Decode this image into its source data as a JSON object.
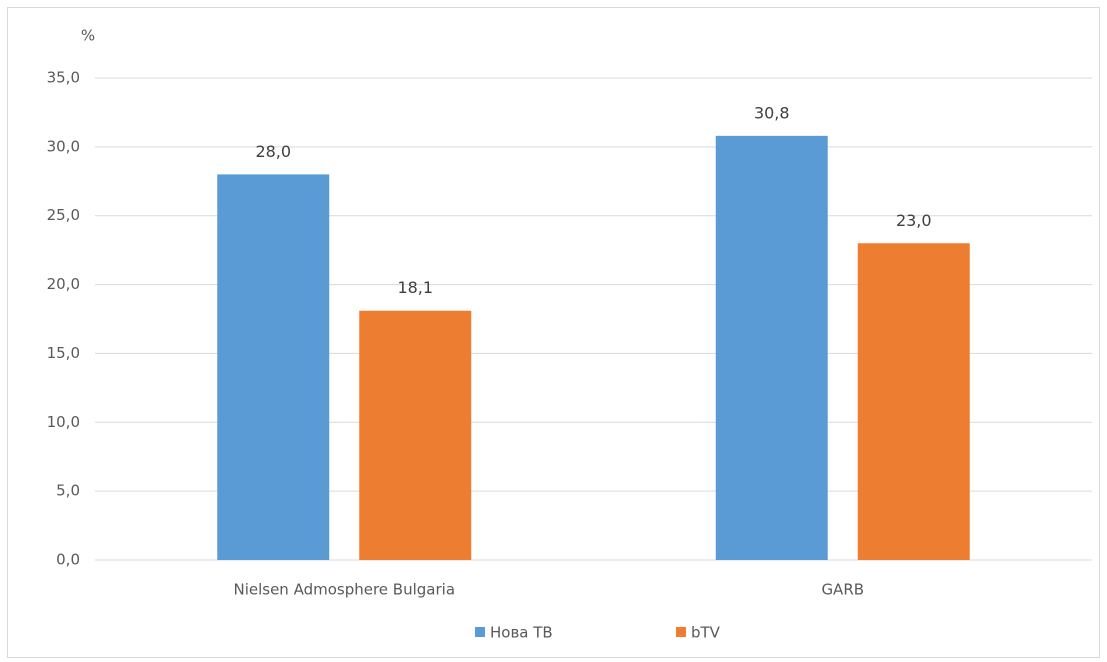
{
  "chart_data": {
    "type": "bar",
    "y_axis_label": "%",
    "categories": [
      "Nielsen Admosphere Bulgaria",
      "GARB"
    ],
    "series": [
      {
        "name": "Нова ТВ",
        "color": "#5b9bd5",
        "values": [
          28.0,
          30.8
        ],
        "value_labels": [
          "28,0",
          "30,8"
        ]
      },
      {
        "name": "bTV",
        "color": "#ed7d31",
        "values": [
          18.1,
          23.0
        ],
        "value_labels": [
          "18,1",
          "23,0"
        ]
      }
    ],
    "ylim": [
      0,
      35
    ],
    "yticks": [
      {
        "value": 0,
        "label": "0,0"
      },
      {
        "value": 5,
        "label": "5,0"
      },
      {
        "value": 10,
        "label": "10,0"
      },
      {
        "value": 15,
        "label": "15,0"
      },
      {
        "value": 20,
        "label": "20,0"
      },
      {
        "value": 25,
        "label": "25,0"
      },
      {
        "value": 30,
        "label": "30,0"
      },
      {
        "value": 35,
        "label": "35,0"
      }
    ],
    "grid": true,
    "legend": "bottom"
  }
}
